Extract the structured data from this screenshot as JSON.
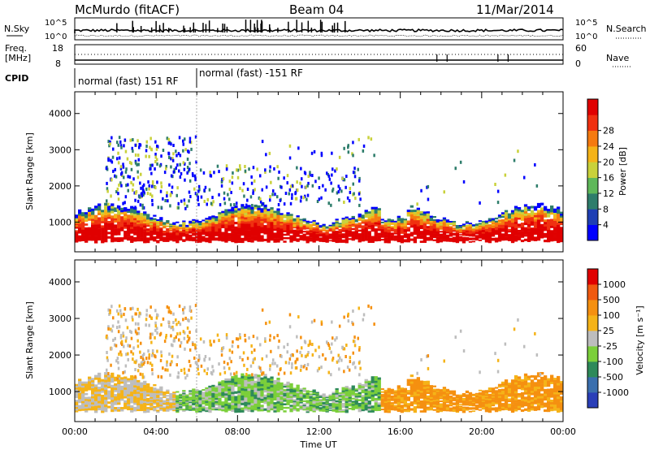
{
  "header": {
    "radar": "McMurdo (fitACF)",
    "beam": "Beam 04",
    "date": "11/Mar/2014"
  },
  "top_panels": {
    "n_sky_label": "N.Sky",
    "n_sky_ticks": [
      "10^5",
      "10^0"
    ],
    "n_search_label": "N.Search",
    "freq_label_line1": "Freq.",
    "freq_label_line2": "[MHz]",
    "freq_ticks": [
      "18",
      "8"
    ],
    "nave_label": "Nave",
    "nave_ticks": [
      "60",
      "0"
    ],
    "cpid_label": "CPID",
    "cpid_segments": [
      {
        "label": "normal (fast) 151 RF",
        "start_h": 0,
        "end_h": 5.98
      },
      {
        "label": "normal (fast) -151 RF",
        "start_h": 5.98,
        "end_h": 24
      }
    ]
  },
  "chart_data": [
    {
      "type": "heatmap",
      "name": "power",
      "ylabel": "Slant Range [km]",
      "ylim": [
        180,
        4600
      ],
      "yticks": [
        1000,
        2000,
        3000,
        4000
      ],
      "xlim": [
        0,
        24
      ],
      "colorbar": {
        "label": "Power [dB]",
        "ticks": [
          "4",
          "8",
          "12",
          "16",
          "20",
          "24",
          "28"
        ],
        "colors": [
          "#0000ff",
          "#1f3fb4",
          "#2e7d6b",
          "#5fb85a",
          "#c9d13a",
          "#f5b318",
          "#f57a10",
          "#f03010",
          "#e00000"
        ]
      },
      "regions": [
        {
          "t0": 0.0,
          "t1": 15.5,
          "r0": 380,
          "r1": 1250,
          "level": "band"
        },
        {
          "t0": 15.5,
          "t1": 24.0,
          "r0": 400,
          "r1": 1300,
          "level": "band"
        },
        {
          "t0": 1.5,
          "t1": 6.0,
          "r0": 1400,
          "r1": 3400,
          "level": "scatter"
        },
        {
          "t0": 6.0,
          "t1": 14.0,
          "r0": 1500,
          "r1": 2600,
          "level": "scatter"
        }
      ]
    },
    {
      "type": "heatmap",
      "name": "velocity",
      "ylabel": "Slant Range [km]",
      "ylim": [
        180,
        4600
      ],
      "yticks": [
        1000,
        2000,
        3000,
        4000
      ],
      "xlim": [
        0,
        24
      ],
      "xlabel": "Time UT",
      "xticks": [
        "00:00",
        "04:00",
        "08:00",
        "12:00",
        "16:00",
        "20:00",
        "00:00"
      ],
      "colorbar": {
        "label": "Velocity [m s⁻¹]",
        "ticks": [
          "1000",
          "500",
          "100",
          "25",
          "-25",
          "-100",
          "-500",
          "-1000"
        ],
        "colors": [
          "#2a3fb8",
          "#3a6fae",
          "#2e8a5a",
          "#7bcf3a",
          "#bdbdbd",
          "#f5b318",
          "#f59010",
          "#f05a10",
          "#e00000"
        ]
      }
    }
  ]
}
